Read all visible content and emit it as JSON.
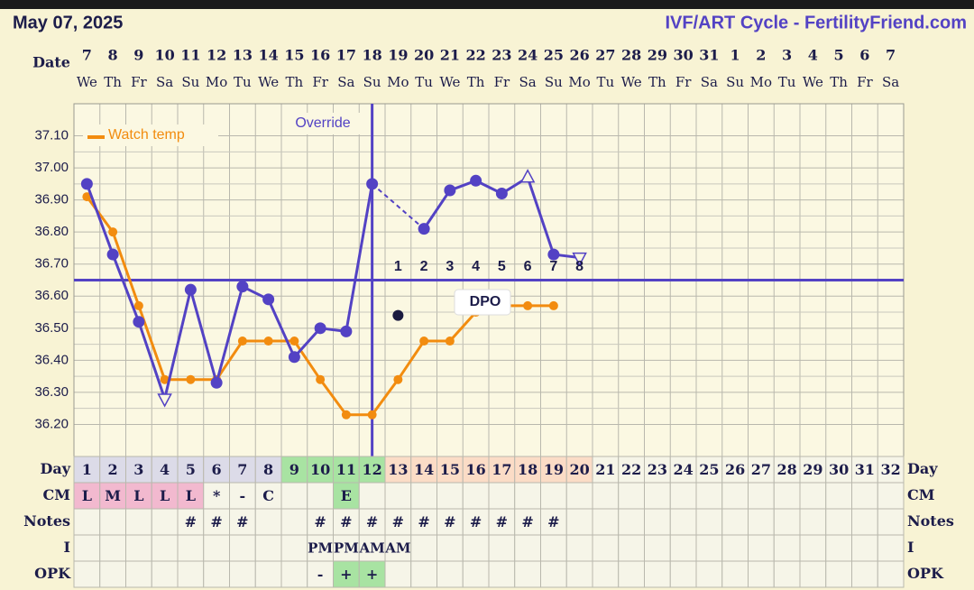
{
  "header": {
    "date": "May 07, 2025",
    "site": "IVF/ART Cycle - FertilityFriend.com"
  },
  "dates": {
    "label": "Date",
    "days": [
      7,
      8,
      9,
      10,
      11,
      12,
      13,
      14,
      15,
      16,
      17,
      18,
      19,
      20,
      21,
      22,
      23,
      24,
      25,
      26,
      27,
      28,
      29,
      30,
      31,
      1,
      2,
      3,
      4,
      5,
      6,
      7
    ],
    "weekdays": [
      "We",
      "Th",
      "Fr",
      "Sa",
      "Su",
      "Mo",
      "Tu",
      "We",
      "Th",
      "Fr",
      "Sa",
      "Su",
      "Mo",
      "Tu",
      "We",
      "Th",
      "Fr",
      "Sa",
      "Su",
      "Mo",
      "Tu",
      "We",
      "Th",
      "Fr",
      "Sa",
      "Su",
      "Mo",
      "Tu",
      "We",
      "Th",
      "Fr",
      "Sa"
    ]
  },
  "chart_data": {
    "type": "line",
    "x": [
      1,
      2,
      3,
      4,
      5,
      6,
      7,
      8,
      9,
      10,
      11,
      12,
      13,
      14,
      15,
      16,
      17,
      18,
      19,
      20
    ],
    "ylim": [
      36.1,
      37.2
    ],
    "yticks": [
      {
        "value": 36.2,
        "label": "36.20"
      },
      {
        "value": 36.3,
        "label": "36.30"
      },
      {
        "value": 36.4,
        "label": "36.40"
      },
      {
        "value": 36.5,
        "label": "36.50"
      },
      {
        "value": 36.6,
        "label": "36.60"
      },
      {
        "value": 36.7,
        "label": "36.70"
      },
      {
        "value": 36.8,
        "label": "36.80"
      },
      {
        "value": 36.9,
        "label": "36.90"
      },
      {
        "value": 37.0,
        "label": "37.00"
      },
      {
        "value": 37.1,
        "label": "37.10"
      }
    ],
    "grid": true,
    "series": [
      {
        "color": "#5342c4",
        "dashed_gaps": true,
        "open_points": [
          {
            "x": 4,
            "dir": "down"
          },
          {
            "x": 18,
            "dir": "up"
          },
          {
            "x": 20,
            "dir": "down"
          }
        ],
        "values": [
          36.95,
          36.73,
          36.52,
          36.28,
          36.62,
          36.33,
          36.63,
          36.59,
          36.41,
          36.5,
          36.49,
          36.95,
          null,
          36.81,
          36.93,
          36.96,
          36.92,
          36.97,
          36.73,
          36.72
        ]
      },
      {
        "name": "Watch temp",
        "color": "#f28c0f",
        "values": [
          36.91,
          36.8,
          36.57,
          36.34,
          36.34,
          36.34,
          36.46,
          36.46,
          36.46,
          36.34,
          36.23,
          36.23,
          36.34,
          36.46,
          36.46,
          36.55,
          36.57,
          36.57,
          36.57,
          null
        ]
      }
    ],
    "coverline": 36.65,
    "ovulation_day": 12,
    "marker": {
      "x": 13,
      "value": 36.54
    },
    "dpo_labels": [
      1,
      2,
      3,
      4,
      5,
      6,
      7,
      8
    ],
    "annotations": [
      "Override",
      "DPO"
    ]
  },
  "table": {
    "row_labels": [
      "Day",
      "CM",
      "Notes",
      "I",
      "OPK"
    ],
    "days": [
      1,
      2,
      3,
      4,
      5,
      6,
      7,
      8,
      9,
      10,
      11,
      12,
      13,
      14,
      15,
      16,
      17,
      18,
      19,
      20,
      21,
      22,
      23,
      24,
      25,
      26,
      27,
      28,
      29,
      30,
      31,
      32
    ],
    "day_colors": [
      "#dcdbe8",
      "#dcdbe8",
      "#dcdbe8",
      "#dcdbe8",
      "#dcdbe8",
      "#dcdbe8",
      "#dcdbe8",
      "#dcdbe8",
      "#a8e3a2",
      "#a8e3a2",
      "#a8e3a2",
      "#a8e3a2",
      "#fbdcc6",
      "#fbdcc6",
      "#fbdcc6",
      "#fbdcc6",
      "#fbdcc6",
      "#fbdcc6",
      "#fbdcc6",
      "#fbdcc6",
      null,
      null,
      null,
      null,
      null,
      null,
      null,
      null,
      null,
      null,
      null,
      null
    ],
    "cm": [
      "L",
      "M",
      "L",
      "L",
      "L",
      "*",
      "-",
      "C",
      null,
      null,
      "E",
      null,
      null,
      null,
      null,
      null,
      null,
      null,
      null,
      null,
      null,
      null,
      null,
      null,
      null,
      null,
      null,
      null,
      null,
      null,
      null,
      null
    ],
    "cm_colors": [
      "#f2b9cf",
      "#f2b9cf",
      "#f2b9cf",
      "#f2b9cf",
      "#f2b9cf",
      null,
      null,
      null,
      null,
      null,
      "#a8e3a2",
      null,
      null,
      null,
      null,
      null,
      null,
      null,
      null,
      null,
      null,
      null,
      null,
      null,
      null,
      null,
      null,
      null,
      null,
      null,
      null,
      null
    ],
    "notes": [
      null,
      null,
      null,
      null,
      "#",
      "#",
      "#",
      null,
      null,
      "#",
      "#",
      "#",
      "#",
      "#",
      "#",
      "#",
      "#",
      "#",
      "#",
      null,
      null,
      null,
      null,
      null,
      null,
      null,
      null,
      null,
      null,
      null,
      null,
      null
    ],
    "i": [
      null,
      null,
      null,
      null,
      null,
      null,
      null,
      null,
      null,
      "PM",
      "PM",
      "AM",
      "AM",
      null,
      null,
      null,
      null,
      null,
      null,
      null,
      null,
      null,
      null,
      null,
      null,
      null,
      null,
      null,
      null,
      null,
      null,
      null
    ],
    "opk": [
      null,
      null,
      null,
      null,
      null,
      null,
      null,
      null,
      null,
      "-",
      "+",
      "+",
      null,
      null,
      null,
      null,
      null,
      null,
      null,
      null,
      null,
      null,
      null,
      null,
      null,
      null,
      null,
      null,
      null,
      null,
      null,
      null
    ],
    "opk_colors": [
      null,
      null,
      null,
      null,
      null,
      null,
      null,
      null,
      null,
      null,
      "#a8e3a2",
      "#a8e3a2",
      null,
      null,
      null,
      null,
      null,
      null,
      null,
      null,
      null,
      null,
      null,
      null,
      null,
      null,
      null,
      null,
      null,
      null,
      null,
      null
    ]
  }
}
